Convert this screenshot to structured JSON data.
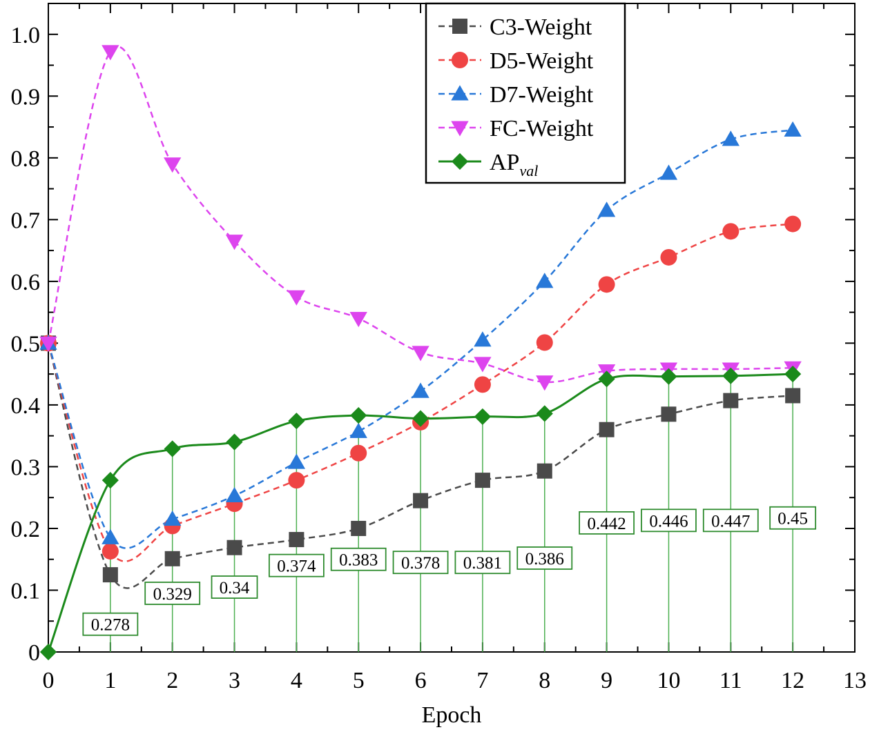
{
  "chart_data": {
    "type": "line",
    "xlabel": "Epoch",
    "ylabel": "",
    "xlim": [
      0,
      13
    ],
    "ylim": [
      0,
      1.05
    ],
    "x_ticks": [
      "0",
      "1",
      "2",
      "3",
      "4",
      "5",
      "6",
      "7",
      "8",
      "9",
      "10",
      "11",
      "12",
      "13"
    ],
    "y_ticks": [
      "0",
      "0.1",
      "0.2",
      "0.3",
      "0.4",
      "0.5",
      "0.6",
      "0.7",
      "0.8",
      "0.9",
      "1.0"
    ],
    "legend_position": "top-right",
    "grid": false,
    "series": [
      {
        "name": "C3-Weight",
        "marker": "square",
        "line": "dashed",
        "color": "#4a4a4a",
        "x": [
          0,
          1,
          2,
          3,
          4,
          5,
          6,
          7,
          8,
          9,
          10,
          11,
          12
        ],
        "y": [
          0.5,
          0.125,
          0.151,
          0.169,
          0.182,
          0.2,
          0.245,
          0.278,
          0.293,
          0.36,
          0.385,
          0.407,
          0.415
        ]
      },
      {
        "name": "D5-Weight",
        "marker": "circle",
        "line": "dashed",
        "color": "#ef4444",
        "x": [
          0,
          1,
          2,
          3,
          4,
          5,
          6,
          7,
          8,
          9,
          10,
          11,
          12
        ],
        "y": [
          0.5,
          0.163,
          0.204,
          0.24,
          0.278,
          0.322,
          0.372,
          0.433,
          0.501,
          0.595,
          0.639,
          0.681,
          0.693
        ]
      },
      {
        "name": "D7-Weight",
        "marker": "triangle-up",
        "line": "dashed",
        "color": "#2878d8",
        "x": [
          0,
          1,
          2,
          3,
          4,
          5,
          6,
          7,
          8,
          9,
          10,
          11,
          12
        ],
        "y": [
          0.5,
          0.185,
          0.215,
          0.253,
          0.307,
          0.357,
          0.422,
          0.505,
          0.6,
          0.715,
          0.775,
          0.83,
          0.845
        ]
      },
      {
        "name": "FC-Weight",
        "marker": "triangle-down",
        "line": "dashed",
        "color": "#dd44ee",
        "x": [
          0,
          1,
          2,
          3,
          4,
          5,
          6,
          7,
          8,
          9,
          10,
          11,
          12
        ],
        "y": [
          0.5,
          0.972,
          0.79,
          0.665,
          0.575,
          0.54,
          0.485,
          0.467,
          0.437,
          0.455,
          0.458,
          0.458,
          0.46
        ]
      },
      {
        "name": "AP",
        "name_sub": "val",
        "marker": "diamond",
        "line": "solid",
        "color": "#1b8a1b",
        "x": [
          0,
          1,
          2,
          3,
          4,
          5,
          6,
          7,
          8,
          9,
          10,
          11,
          12
        ],
        "y": [
          0,
          0.278,
          0.329,
          0.34,
          0.374,
          0.383,
          0.378,
          0.381,
          0.386,
          0.442,
          0.446,
          0.447,
          0.45
        ]
      }
    ],
    "ap_value_labels": [
      "0.278",
      "0.329",
      "0.34",
      "0.374",
      "0.383",
      "0.378",
      "0.381",
      "0.386",
      "0.442",
      "0.446",
      "0.447",
      "0.45"
    ],
    "ap_value_label_levels": [
      0.045,
      0.095,
      0.105,
      0.14,
      0.15,
      0.145,
      0.145,
      0.152,
      0.209,
      0.213,
      0.213,
      0.217
    ]
  }
}
